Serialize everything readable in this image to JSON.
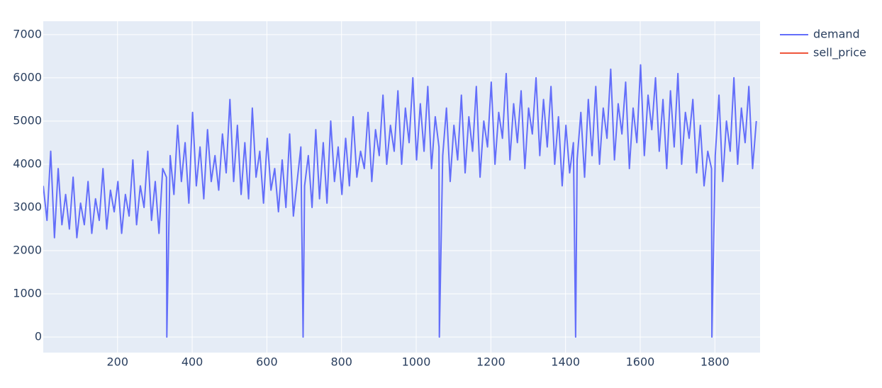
{
  "chart_data": {
    "type": "line",
    "x": [
      1,
      11,
      21,
      31,
      41,
      51,
      61,
      71,
      81,
      91,
      101,
      111,
      121,
      131,
      141,
      151,
      161,
      171,
      181,
      191,
      201,
      211,
      221,
      231,
      241,
      251,
      261,
      271,
      281,
      291,
      301,
      311,
      321,
      331,
      332,
      341,
      351,
      361,
      371,
      381,
      391,
      401,
      411,
      421,
      431,
      441,
      451,
      461,
      471,
      481,
      491,
      501,
      511,
      521,
      531,
      541,
      551,
      561,
      571,
      581,
      591,
      601,
      611,
      621,
      631,
      641,
      651,
      661,
      671,
      681,
      691,
      697,
      701,
      711,
      721,
      731,
      741,
      751,
      761,
      771,
      781,
      791,
      801,
      811,
      821,
      831,
      841,
      851,
      861,
      871,
      881,
      891,
      901,
      911,
      921,
      931,
      941,
      951,
      961,
      971,
      981,
      991,
      1001,
      1011,
      1021,
      1031,
      1041,
      1051,
      1061,
      1062,
      1071,
      1081,
      1091,
      1101,
      1111,
      1121,
      1131,
      1141,
      1151,
      1161,
      1171,
      1181,
      1191,
      1201,
      1211,
      1221,
      1231,
      1241,
      1251,
      1261,
      1271,
      1281,
      1291,
      1301,
      1311,
      1321,
      1331,
      1341,
      1351,
      1361,
      1371,
      1381,
      1391,
      1401,
      1411,
      1421,
      1427,
      1431,
      1441,
      1451,
      1461,
      1471,
      1481,
      1491,
      1501,
      1511,
      1521,
      1531,
      1541,
      1551,
      1561,
      1571,
      1581,
      1591,
      1601,
      1611,
      1621,
      1631,
      1641,
      1651,
      1661,
      1671,
      1681,
      1691,
      1701,
      1711,
      1721,
      1731,
      1741,
      1751,
      1761,
      1771,
      1781,
      1791,
      1792,
      1801,
      1811,
      1821,
      1831,
      1841,
      1851,
      1861,
      1871,
      1881,
      1891,
      1901,
      1911
    ],
    "series": [
      {
        "name": "demand",
        "color": "#636efa",
        "values": [
          3500,
          2700,
          4300,
          2300,
          3900,
          2600,
          3300,
          2500,
          3700,
          2300,
          3100,
          2600,
          3600,
          2400,
          3200,
          2700,
          3900,
          2500,
          3400,
          2900,
          3600,
          2400,
          3300,
          2800,
          4100,
          2600,
          3500,
          3000,
          4300,
          2700,
          3600,
          2400,
          3900,
          3700,
          0,
          4200,
          3300,
          4900,
          3600,
          4500,
          3100,
          5200,
          3500,
          4400,
          3200,
          4800,
          3600,
          4200,
          3400,
          4700,
          3800,
          5500,
          3600,
          4900,
          3300,
          4500,
          3200,
          5300,
          3700,
          4300,
          3100,
          4600,
          3400,
          3900,
          2900,
          4100,
          3000,
          4700,
          2800,
          3600,
          4400,
          0,
          3500,
          4200,
          3000,
          4800,
          3200,
          4500,
          3100,
          5000,
          3600,
          4400,
          3300,
          4600,
          3500,
          5100,
          3700,
          4300,
          3900,
          5200,
          3600,
          4800,
          4200,
          5600,
          4000,
          4900,
          4300,
          5700,
          4000,
          5300,
          4500,
          6000,
          4100,
          5400,
          4300,
          5800,
          3900,
          5100,
          4400,
          0,
          4200,
          5300,
          3600,
          4900,
          4100,
          5600,
          3800,
          5100,
          4300,
          5800,
          3700,
          5000,
          4400,
          5900,
          4000,
          5200,
          4600,
          6100,
          4100,
          5400,
          4500,
          5700,
          3900,
          5300,
          4700,
          6000,
          4200,
          5500,
          4400,
          5800,
          4000,
          5100,
          3500,
          4900,
          3800,
          4500,
          0,
          4100,
          5200,
          3700,
          5500,
          4200,
          5800,
          4000,
          5300,
          4600,
          6200,
          4100,
          5400,
          4700,
          5900,
          3900,
          5300,
          4500,
          6300,
          4200,
          5600,
          4800,
          6000,
          4300,
          5500,
          3900,
          5700,
          4400,
          6100,
          4000,
          5200,
          4600,
          5500,
          3800,
          4900,
          3500,
          4300,
          3900,
          0,
          4200,
          5600,
          3600,
          5000,
          4300,
          6000,
          4000,
          5300,
          4500,
          5800,
          3900,
          5000
        ]
      },
      {
        "name": "sell_price",
        "color": "#ef553b",
        "values": [
          null,
          null,
          null,
          null,
          null,
          null,
          null,
          null,
          null,
          null,
          null,
          null,
          null,
          null,
          null,
          null,
          null,
          null,
          null,
          null,
          null,
          null,
          null,
          null,
          null,
          null,
          null,
          null,
          null,
          null,
          null,
          null,
          null,
          null,
          null,
          null,
          null,
          null,
          null,
          null,
          null,
          null,
          null,
          null,
          null,
          null,
          null,
          null,
          null,
          null,
          null,
          null,
          null,
          null,
          null,
          null,
          null,
          null,
          null,
          null,
          null,
          null,
          null,
          null,
          null,
          null,
          null,
          null,
          null,
          null,
          null,
          null,
          null,
          null,
          null,
          null,
          null,
          null,
          null,
          null,
          null,
          null,
          null,
          null,
          null,
          null,
          null,
          null,
          null,
          null,
          null,
          null,
          null,
          null,
          null,
          null,
          null,
          null,
          null,
          null,
          null,
          null,
          null,
          null,
          null,
          null,
          null,
          null,
          null,
          null,
          null,
          null,
          null,
          null,
          null,
          null,
          null,
          null,
          null,
          null,
          null,
          null,
          null,
          null,
          null,
          null,
          null,
          null,
          null,
          null,
          null,
          null,
          null,
          null,
          null,
          null,
          null,
          null,
          null,
          null,
          null,
          null,
          null,
          null,
          null,
          null,
          null,
          null,
          null,
          null,
          null,
          null,
          null,
          null,
          null,
          null,
          null,
          null,
          null,
          null,
          null,
          null,
          null,
          null,
          null,
          null,
          null,
          null,
          null,
          null,
          null,
          null,
          null,
          null,
          null,
          null,
          null,
          null,
          null,
          null,
          null,
          null,
          null,
          null,
          null,
          null,
          null,
          null,
          null,
          null,
          null,
          null,
          null,
          null,
          null,
          null,
          null
        ]
      }
    ],
    "xlim": [
      1,
      1921
    ],
    "xticks": [
      200,
      400,
      600,
      800,
      1000,
      1200,
      1400,
      1600,
      1800
    ],
    "ylim": [
      -360,
      7310
    ],
    "yticks": [
      0,
      1000,
      2000,
      3000,
      4000,
      5000,
      6000,
      7000
    ],
    "grid": true,
    "legend": "outside-right"
  }
}
